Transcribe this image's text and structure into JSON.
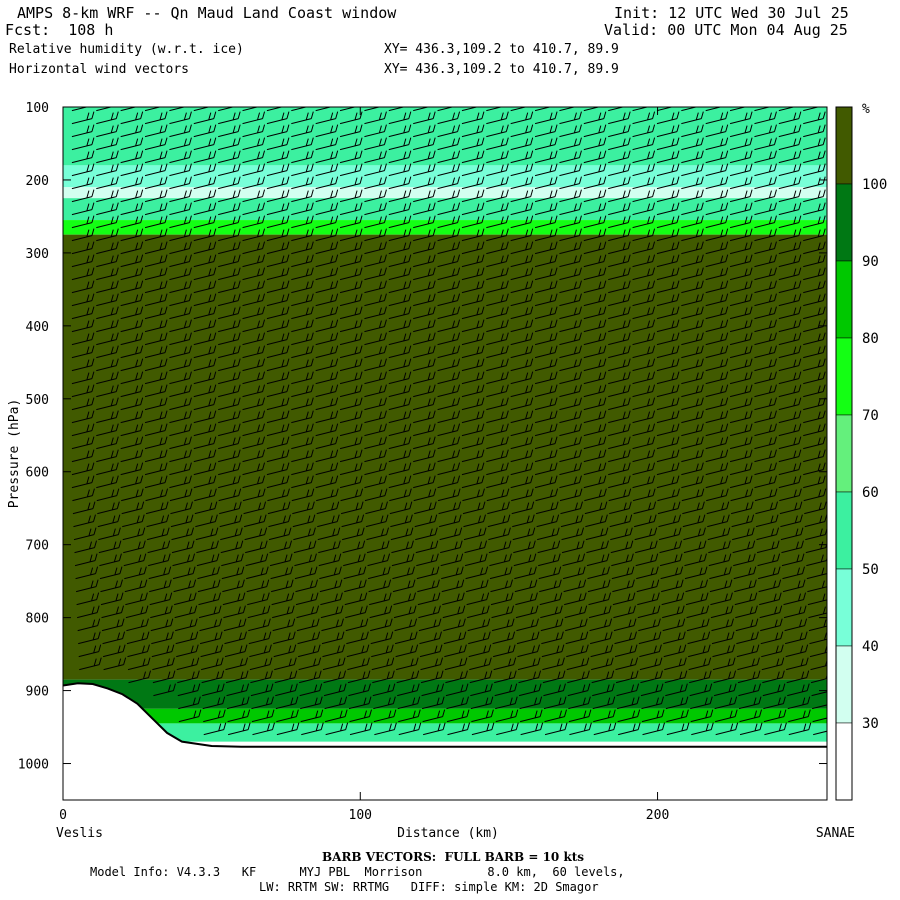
{
  "header": {
    "title": "AMPS 8-km WRF -- Qn Maud Land Coast window",
    "init": "Init: 12 UTC Wed 30 Jul 25",
    "fcst": "Fcst:  108 h",
    "valid": "Valid: 00 UTC Mon 04 Aug 25",
    "field1": "Relative humidity (w.r.t. ice)",
    "xy1": "XY= 436.3,109.2 to 410.7, 89.9",
    "field2": "Horizontal wind vectors",
    "xy2": "XY= 436.3,109.2 to 410.7, 89.9"
  },
  "chart_data": {
    "type": "heatmap",
    "title": "Relative humidity (w.r.t. ice)",
    "xlabel": "Distance (km)",
    "ylabel": "Pressure (hPa)",
    "xlim": [
      0,
      257
    ],
    "ylim": [
      1050,
      100
    ],
    "x_ticks": [
      0,
      100,
      200
    ],
    "y_ticks": [
      100,
      200,
      300,
      400,
      500,
      600,
      700,
      800,
      900,
      1000
    ],
    "x_end_labels": [
      "Veslis",
      "SANAE"
    ],
    "colorbar": {
      "unit": "%",
      "tick_labels": [
        30,
        40,
        50,
        60,
        70,
        80,
        90,
        100
      ],
      "bins": [
        {
          "range": "<30",
          "color": "#ffffff"
        },
        {
          "range": "30-40",
          "color": "#d2fff0"
        },
        {
          "range": "40-50",
          "color": "#78ffd8"
        },
        {
          "range": "50-60",
          "color": "#3cf0a0"
        },
        {
          "range": "60-70",
          "color": "#64f07c"
        },
        {
          "range": "70-80",
          "color": "#14ff14"
        },
        {
          "range": "80-90",
          "color": "#00c800"
        },
        {
          "range": "90-100",
          "color": "#007814"
        },
        {
          "range": ">100",
          "color": "#415a00"
        }
      ]
    },
    "layers": [
      {
        "p_top": 100,
        "p_bot": 180,
        "rh_bin": "50-60"
      },
      {
        "p_top": 180,
        "p_bot": 210,
        "rh_bin": "40-50"
      },
      {
        "p_top": 210,
        "p_bot": 225,
        "rh_bin": "30-40"
      },
      {
        "p_top": 225,
        "p_bot": 255,
        "rh_bin": "50-60"
      },
      {
        "p_top": 255,
        "p_bot": 275,
        "rh_bin": "70-80"
      },
      {
        "p_top": 275,
        "p_bot": 885,
        "rh_bin": ">100"
      },
      {
        "p_top": 885,
        "p_bot": 925,
        "rh_bin": "90-100"
      },
      {
        "p_top": 925,
        "p_bot": 945,
        "rh_bin": "80-90"
      },
      {
        "p_top": 945,
        "p_bot": 970,
        "rh_bin": "50-60"
      }
    ],
    "terrain": {
      "x": [
        0,
        5,
        10,
        15,
        20,
        25,
        30,
        35,
        40,
        50,
        60,
        80,
        100,
        150,
        200,
        257
      ],
      "pressure": [
        893,
        890,
        891,
        897,
        905,
        918,
        938,
        958,
        970,
        976,
        977,
        977,
        977,
        977,
        977,
        977
      ]
    },
    "wind_barbs": {
      "full_barb_kts": 10
    }
  },
  "footer": {
    "barb_note": "BARB VECTORS:  FULL BARB = 10 kts",
    "line1": "Model Info: V4.3.3   KF      MYJ PBL  Morrison         8.0 km,  60 levels,",
    "line2": "LW: RRTM SW: RRTMG   DIFF: simple KM: 2D Smagor"
  }
}
